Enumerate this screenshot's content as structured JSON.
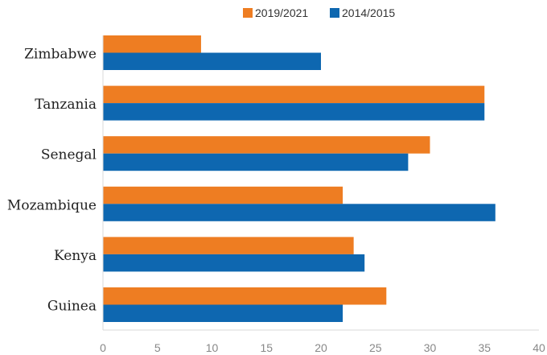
{
  "chart_data": {
    "type": "bar",
    "orientation": "horizontal",
    "title": "",
    "xlabel": "",
    "ylabel": "",
    "categories": [
      "Zimbabwe",
      "Tanzania",
      "Senegal",
      "Mozambique",
      "Kenya",
      "Guinea"
    ],
    "series": [
      {
        "name": "2019/2021",
        "color": "#EE7D22",
        "values": [
          9,
          35,
          30,
          22,
          23,
          26
        ]
      },
      {
        "name": "2014/2015",
        "color": "#0E67B0",
        "values": [
          20,
          35,
          28,
          36,
          24,
          22
        ]
      }
    ],
    "xlim": [
      0,
      40
    ],
    "xticks": [
      "0",
      "5",
      "10",
      "15",
      "20",
      "25",
      "30",
      "35",
      "40"
    ],
    "grid": false,
    "legend_position": "top"
  }
}
